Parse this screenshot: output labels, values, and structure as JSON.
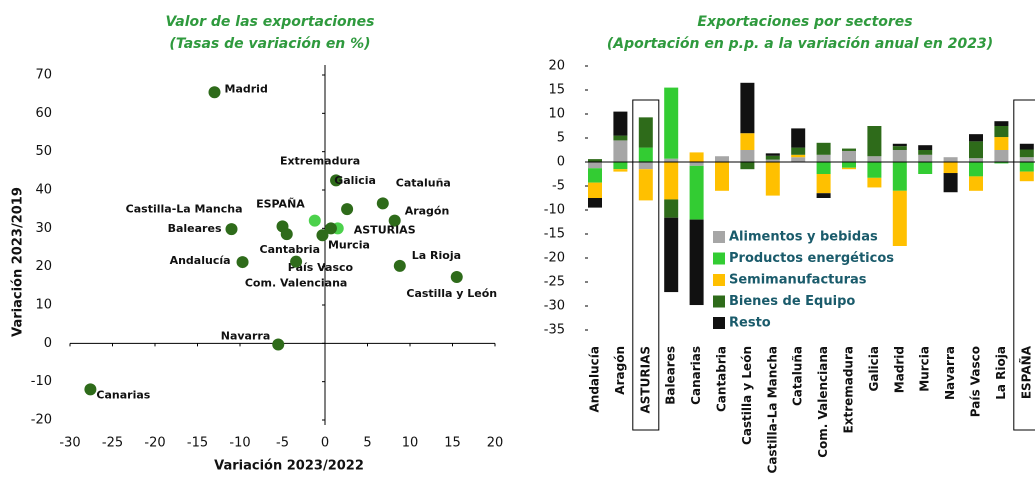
{
  "chart_data": [
    {
      "type": "scatter",
      "title": [
        "Valor de las exportaciones",
        "(Tasas de variación en %)"
      ],
      "x_label": "Variación 2023/2022",
      "y_label": "Variación 2023/2019",
      "labels": [
        "Madrid",
        "Extremadura",
        "Cataluña",
        "Galicia",
        "Aragón",
        "ESPAÑA",
        "Castilla-La Mancha",
        "Baleares",
        "ASTURIAS",
        "Cantabria",
        "Murcia",
        "País Vasco",
        "La Rioja",
        "Castilla y León",
        "Andalucía",
        "Com. Valenciana",
        "Navarra",
        "Canarias"
      ],
      "x": [
        -13,
        1.3,
        6.8,
        2.6,
        8.2,
        -1.2,
        -5,
        -11,
        1.5,
        -4.5,
        0.7,
        -0.3,
        8.8,
        15.5,
        -9.7,
        -3.4,
        -5.5,
        -27.6
      ],
      "y": [
        65.5,
        42.5,
        36.5,
        35,
        32,
        32,
        30.5,
        29.8,
        30,
        28.5,
        30,
        28.2,
        20.2,
        17.3,
        21.2,
        21.3,
        -0.3,
        -12
      ],
      "colors": [
        "#2e6b1a",
        "#2e6b1a",
        "#2e6b1a",
        "#2e6b1a",
        "#2e6b1a",
        "#4cd14c",
        "#2e6b1a",
        "#2e6b1a",
        "#4cd14c",
        "#2e6b1a",
        "#2e6b1a",
        "#2e6b1a",
        "#2e6b1a",
        "#2e6b1a",
        "#2e6b1a",
        "#2e6b1a",
        "#2e6b1a",
        "#2e6b1a"
      ],
      "xlim": [
        -30,
        20
      ],
      "xticks": [
        -30,
        -25,
        -20,
        -15,
        -10,
        -5,
        0,
        5,
        10,
        15,
        20
      ],
      "ylim": [
        -20,
        70
      ],
      "yticks": [
        -20,
        -10,
        0,
        10,
        20,
        30,
        40,
        50,
        60,
        70
      ]
    },
    {
      "type": "bar",
      "stacked": true,
      "title": [
        "Exportaciones por sectores",
        "(Aportación en p.p. a la variación anual en 2023)"
      ],
      "categories": [
        "Andalucía",
        "Aragón",
        "ASTURIAS",
        "Baleares",
        "Canarias",
        "Cantabria",
        "Castilla y León",
        "Castilla-La Mancha",
        "Cataluña",
        "Com. Valenciana",
        "Extremadura",
        "Galicia",
        "Madrid",
        "Murcia",
        "Navarra",
        "País Vasco",
        "La Rioja",
        "ESPAÑA"
      ],
      "series": [
        {
          "name": "Alimentos y bebidas",
          "color": "#a6a6a6",
          "values": [
            -1.3,
            4.5,
            -1.5,
            0.7,
            -0.8,
            1.2,
            2.5,
            0.5,
            1,
            1.5,
            2.3,
            1.2,
            2.5,
            1.5,
            1,
            0.8,
            2.5,
            1
          ]
        },
        {
          "name": "Productos energéticos",
          "color": "#33cc33",
          "values": [
            -3,
            -1.5,
            3,
            14.8,
            -11.2,
            0,
            0,
            0,
            0,
            -2.5,
            -1.2,
            -3.3,
            -6,
            -2.5,
            0,
            -3,
            -0.3,
            -2
          ]
        },
        {
          "name": "Semimanufacturas",
          "color": "#ffc000",
          "values": [
            -3.2,
            -0.5,
            -6.5,
            -7.8,
            2,
            -6,
            3.5,
            -7,
            0.5,
            -4,
            -0.3,
            -2,
            -11.5,
            0,
            -2.3,
            -3,
            2.7,
            -2
          ]
        },
        {
          "name": "Bienes de Equipo",
          "color": "#2e6b1a",
          "values": [
            0.6,
            1,
            6.3,
            -3.8,
            0,
            0,
            -1.5,
            0.8,
            1.5,
            2.5,
            0.5,
            6.3,
            0.8,
            1,
            0,
            3.5,
            2.3,
            1.6
          ]
        },
        {
          "name": "Resto",
          "color": "#111111",
          "values": [
            -2,
            5,
            0,
            -15.5,
            -17.8,
            0,
            10.5,
            0.5,
            4,
            -1,
            0,
            0,
            0.5,
            1,
            -4,
            1.5,
            1,
            1.2
          ]
        }
      ],
      "ylim": [
        -35,
        20
      ],
      "yticks": [
        -35,
        -30,
        -25,
        -20,
        -15,
        -10,
        -5,
        0,
        5,
        10,
        15,
        20
      ]
    }
  ]
}
